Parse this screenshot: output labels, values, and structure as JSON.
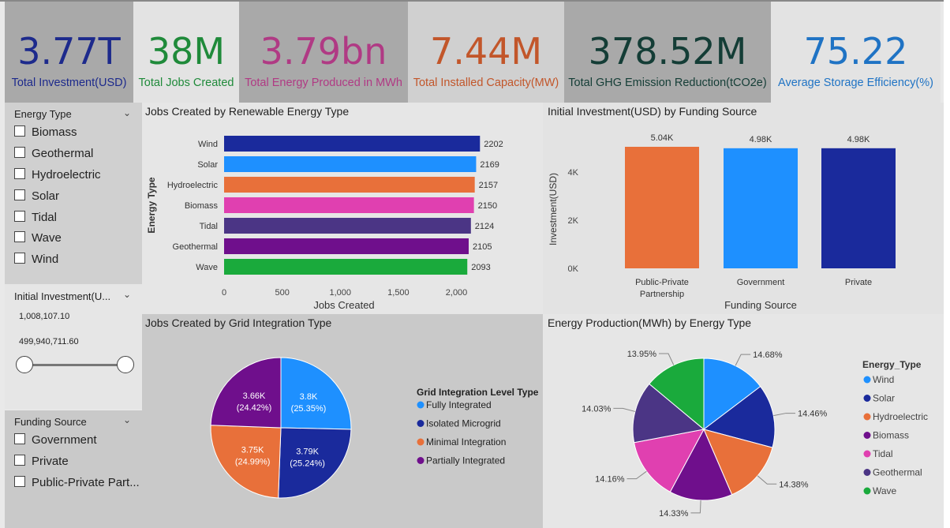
{
  "kpis": [
    {
      "value": "3.77T",
      "label": "Total Investment(USD)",
      "color": "#1d2a8c",
      "label_color": "#1d2a8c"
    },
    {
      "value": "38M",
      "label": "Total Jobs Created",
      "color": "#1f8a3a",
      "label_color": "#1f8a3a"
    },
    {
      "value": "3.79bn",
      "label": "Total Energy Produced in MWh",
      "color": "#b03a84",
      "label_color": "#b03a84"
    },
    {
      "value": "7.44M",
      "label": "Total Installed Capacity(MW)",
      "color": "#c2562a",
      "label_color": "#c2562a"
    },
    {
      "value": "378.52M",
      "label": "Total GHG Emission Reduction(tCO2e)",
      "color": "#143d36",
      "label_color": "#143d36"
    },
    {
      "value": "75.22",
      "label": "Average Storage Efficiency(%)",
      "color": "#1f73c4",
      "label_color": "#1f73c4"
    }
  ],
  "slicers": {
    "energy_type": {
      "title": "Energy Type",
      "options": [
        "Biomass",
        "Geothermal",
        "Hydroelectric",
        "Solar",
        "Tidal",
        "Wave",
        "Wind"
      ]
    },
    "investment": {
      "title": "Initial Investment(U...",
      "min": "1,008,107.10",
      "max": "499,940,711.60",
      "range_fraction": [
        0,
        1
      ]
    },
    "funding": {
      "title": "Funding Source",
      "options": [
        "Government",
        "Private",
        "Public-Private Part..."
      ]
    }
  },
  "charts": {
    "jobs_energy": {
      "title": "Jobs Created by Renewable Energy Type",
      "chart_data": {
        "type": "bar",
        "orientation": "horizontal",
        "categories": [
          "Wind",
          "Solar",
          "Hydroelectric",
          "Biomass",
          "Tidal",
          "Geothermal",
          "Wave"
        ],
        "values": [
          2202,
          2169,
          2157,
          2150,
          2124,
          2105,
          2093
        ],
        "colors": [
          "#1a2a9c",
          "#1e90ff",
          "#e8703a",
          "#e040b0",
          "#4b3585",
          "#6f0f8c",
          "#1aaa3c"
        ],
        "xlabel": "Jobs Created",
        "ylabel": "Energy Type",
        "xlim": [
          0,
          2200
        ],
        "ticks": [
          0,
          500,
          1000,
          1500,
          2000
        ],
        "tick_labels": [
          "0",
          "500",
          "1,000",
          "1,500",
          "2,000"
        ]
      }
    },
    "invest_funding": {
      "title": "Initial Investment(USD) by Funding Source",
      "chart_data": {
        "type": "bar",
        "categories": [
          "Public-Private Partnership",
          "Government",
          "Private"
        ],
        "category_lines": [
          [
            "Public-Private",
            "Partnership"
          ],
          [
            "Government"
          ],
          [
            "Private"
          ]
        ],
        "values": [
          5040,
          4980,
          4980
        ],
        "data_labels": [
          "5.04K",
          "4.98K",
          "4.98K"
        ],
        "colors": [
          "#e8703a",
          "#1e90ff",
          "#1a2a9c"
        ],
        "xlabel": "Funding Source",
        "ylabel": "Investment(USD)",
        "ylim": [
          0,
          5040
        ],
        "ticks": [
          0,
          2000,
          4000
        ],
        "tick_labels": [
          "0K",
          "2K",
          "4K"
        ]
      }
    },
    "jobs_grid": {
      "title": "Jobs Created by Grid Integration Type",
      "legend_title": "Grid Integration Level Type",
      "chart_data": {
        "type": "pie",
        "labels": [
          "Fully Integrated",
          "Isolated Microgrid",
          "Minimal Integration",
          "Partially Integrated"
        ],
        "values": [
          25.35,
          25.24,
          24.99,
          24.42
        ],
        "slice_labels": [
          [
            "3.8K",
            "(25.35%)"
          ],
          [
            "3.79K",
            "(25.24%)"
          ],
          [
            "3.75K",
            "(24.99%)"
          ],
          [
            "3.66K",
            "(24.42%)"
          ]
        ],
        "colors": [
          "#1e90ff",
          "#1a2a9c",
          "#e8703a",
          "#6f0f8c"
        ]
      }
    },
    "energy_prod": {
      "title": "Energy Production(MWh) by Energy Type",
      "legend_title": "Energy_Type",
      "chart_data": {
        "type": "pie",
        "labels": [
          "Wind",
          "Solar",
          "Hydroelectric",
          "Biomass",
          "Tidal",
          "Geothermal",
          "Wave"
        ],
        "values": [
          14.68,
          14.46,
          14.38,
          14.33,
          14.16,
          14.03,
          13.95
        ],
        "slice_labels": [
          "14.68%",
          "14.46%",
          "14.38%",
          "14.33%",
          "14.16%",
          "14.03%",
          "13.95%"
        ],
        "colors": [
          "#1e90ff",
          "#1a2a9c",
          "#e8703a",
          "#6f0f8c",
          "#e040b0",
          "#4b3585",
          "#1aaa3c"
        ]
      }
    }
  }
}
